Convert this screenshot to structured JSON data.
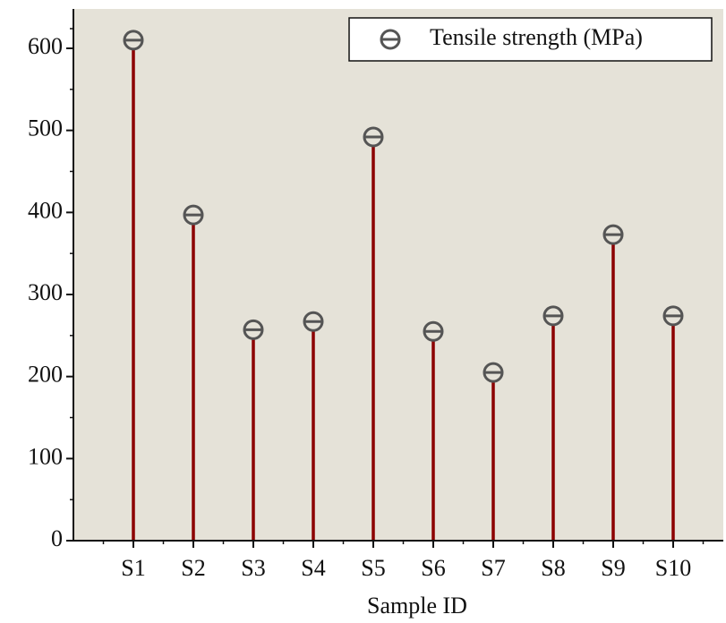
{
  "chart_data": {
    "type": "lollipop",
    "xlabel": "Sample ID",
    "categories": [
      "S1",
      "S2",
      "S3",
      "S4",
      "S5",
      "S6",
      "S7",
      "S8",
      "S9",
      "S10"
    ],
    "series": [
      {
        "name": "Tensile strength (MPa)",
        "color": "#8b0000",
        "marker_color": "#555555",
        "values": [
          610,
          397,
          257,
          267,
          492,
          255,
          205,
          274,
          373,
          274
        ]
      }
    ],
    "ylim": [
      0,
      648
    ],
    "yticks": [
      0,
      100,
      200,
      300,
      400,
      500,
      600
    ],
    "legend": "top-right",
    "background": "#e5e2d8"
  }
}
